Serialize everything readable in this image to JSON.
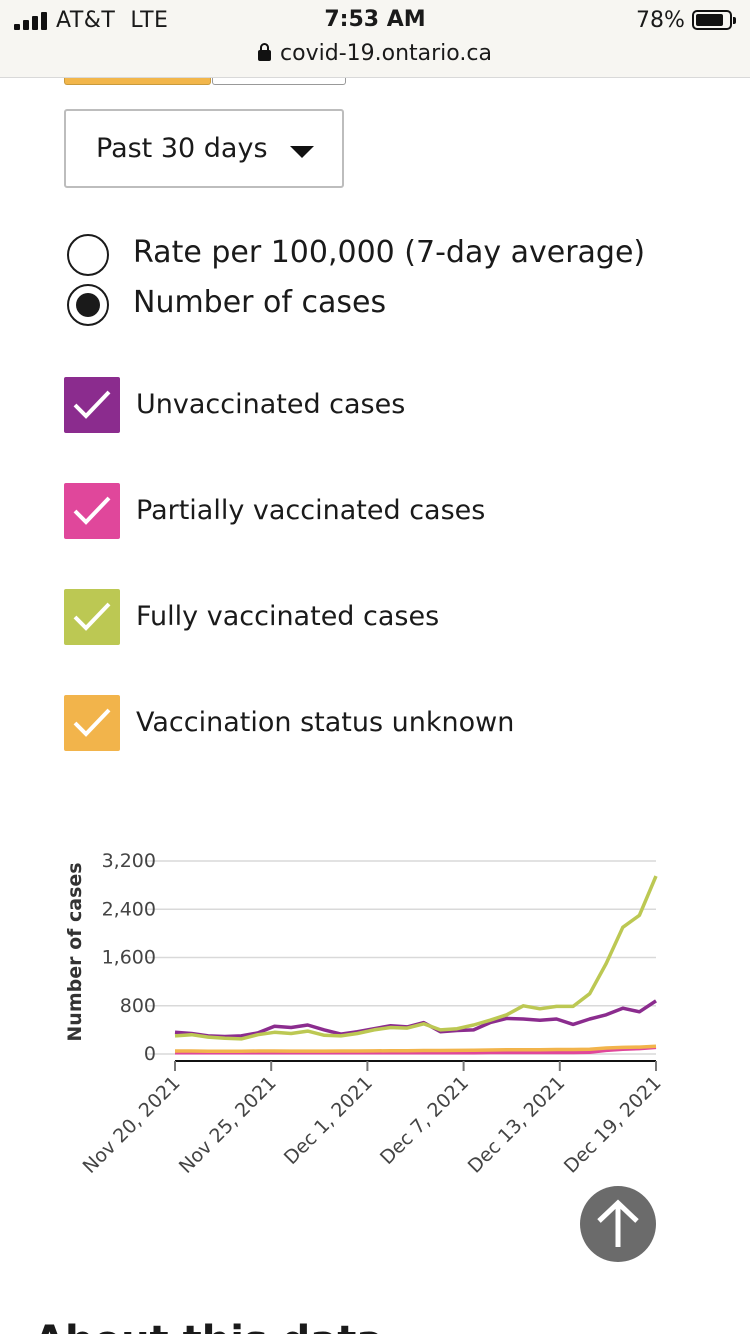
{
  "status_bar": {
    "carrier": "AT&T  LTE",
    "time": "7:53 AM",
    "battery": "78%",
    "url": "covid-19.ontario.ca"
  },
  "controls": {
    "period_select": "Past 30 days",
    "radio_options": [
      {
        "label": "Rate per 100,000 (7-day average)",
        "checked": false
      },
      {
        "label": "Number of cases",
        "checked": true
      }
    ],
    "checkbox_options": [
      {
        "label": "Unvaccinated cases",
        "checked": true,
        "color": "#8b2c8e"
      },
      {
        "label": "Partially vaccinated cases",
        "checked": true,
        "color": "#e0479b"
      },
      {
        "label": "Fully vaccinated cases",
        "checked": true,
        "color": "#bcc853"
      },
      {
        "label": "Vaccination status unknown",
        "checked": true,
        "color": "#f2b44b"
      }
    ]
  },
  "chart_data": {
    "type": "line",
    "ylabel": "Number of cases",
    "ylim": [
      0,
      3200
    ],
    "yticks": [
      "3,200",
      "2,400",
      "1,600",
      "800",
      "0"
    ],
    "x_tick_labels": [
      "Nov 20, 2021",
      "Nov 25, 2021",
      "Dec 1, 2021",
      "Dec 7, 2021",
      "Dec 13, 2021",
      "Dec 19, 2021"
    ],
    "grid": true,
    "series": [
      {
        "key": "unvaccinated",
        "color": "#8b2c8e",
        "values": [
          360,
          340,
          300,
          290,
          300,
          350,
          460,
          440,
          480,
          400,
          330,
          370,
          420,
          470,
          450,
          520,
          370,
          390,
          400,
          520,
          590,
          580,
          560,
          580,
          490,
          580,
          650,
          760,
          700,
          880
        ]
      },
      {
        "key": "fully_vaccinated",
        "color": "#bcc853",
        "values": [
          300,
          320,
          280,
          260,
          250,
          320,
          360,
          340,
          380,
          310,
          300,
          340,
          400,
          440,
          430,
          500,
          400,
          420,
          480,
          560,
          650,
          800,
          750,
          790,
          790,
          1000,
          1500,
          2100,
          2300,
          2950
        ]
      },
      {
        "key": "partially_vaccinated",
        "color": "#e0479b",
        "values": [
          20,
          20,
          20,
          20,
          20,
          20,
          20,
          20,
          20,
          20,
          20,
          20,
          20,
          20,
          20,
          20,
          20,
          20,
          20,
          25,
          25,
          25,
          25,
          25,
          25,
          30,
          60,
          80,
          90,
          110
        ]
      },
      {
        "key": "status_unknown",
        "color": "#f2b44b",
        "values": [
          50,
          50,
          45,
          45,
          45,
          50,
          50,
          48,
          48,
          48,
          50,
          50,
          52,
          55,
          55,
          58,
          58,
          60,
          62,
          66,
          70,
          72,
          72,
          74,
          74,
          78,
          100,
          110,
          115,
          130
        ]
      }
    ]
  },
  "page": {
    "next_section_heading": "About this data"
  }
}
